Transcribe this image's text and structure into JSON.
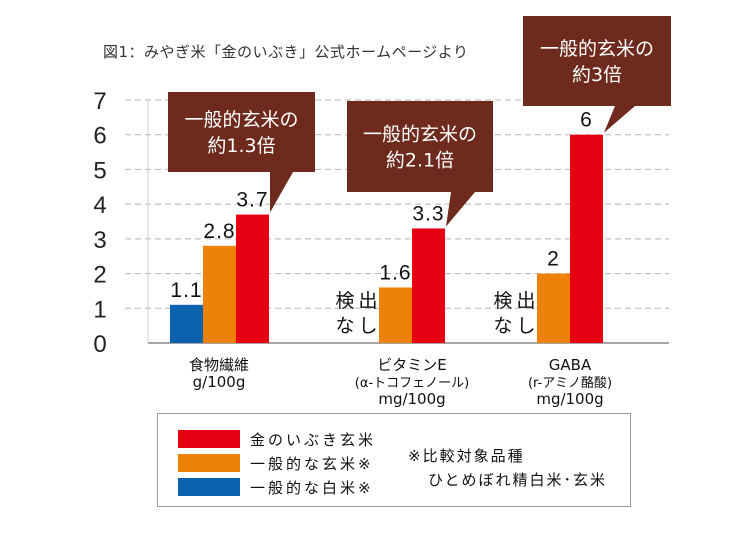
{
  "caption": "図1：みやぎ米「金のいぶき」公式ホームページより",
  "chart_data": {
    "type": "bar",
    "title": "",
    "xlabel": "",
    "ylabel": "",
    "ylim": [
      0,
      7
    ],
    "yticks": [
      "0",
      "1",
      "2",
      "3",
      "4",
      "5",
      "6",
      "7"
    ],
    "grid": true,
    "legend_position": "bottom",
    "categories": [
      {
        "lines": [
          "食物繊維",
          "g/100g"
        ]
      },
      {
        "lines": [
          "ビタミンE",
          "(α-トコフェノール)",
          "mg/100g"
        ]
      },
      {
        "lines": [
          "GABA",
          "(r-アミノ酪酸)",
          "mg/100g"
        ]
      }
    ],
    "series": [
      {
        "name": "一般的な白米※",
        "color": "#0d62b0",
        "values": [
          1.1,
          null,
          null
        ],
        "labels": [
          "1.1",
          "検出なし",
          "検出なし"
        ]
      },
      {
        "name": "一般的な玄米※",
        "color": "#ee8209",
        "values": [
          2.8,
          1.6,
          2
        ],
        "labels": [
          "2.8",
          "1.6",
          "2"
        ]
      },
      {
        "name": "金のいぶき玄米",
        "color": "#e60012",
        "values": [
          3.7,
          3.3,
          6
        ],
        "labels": [
          "3.7",
          "3.3",
          "6"
        ]
      }
    ],
    "not_detected_text": [
      "検出",
      "なし"
    ],
    "annotations": [
      {
        "category": 0,
        "lines": [
          "一般的玄米の",
          "約1.3倍"
        ]
      },
      {
        "category": 1,
        "lines": [
          "一般的玄米の",
          "約2.1倍"
        ]
      },
      {
        "category": 2,
        "lines": [
          "一般的玄米の",
          "約3倍"
        ]
      }
    ],
    "callout_color": "#6e2a1c"
  },
  "legend": {
    "items": [
      {
        "label": "金のいぶき玄米",
        "color": "#e60012"
      },
      {
        "label": "一般的な玄米※",
        "color": "#ee8209"
      },
      {
        "label": "一般的な白米※",
        "color": "#0d62b0"
      }
    ],
    "note": [
      "※比較対象品種",
      "ひとめぼれ精白米･玄米"
    ]
  }
}
